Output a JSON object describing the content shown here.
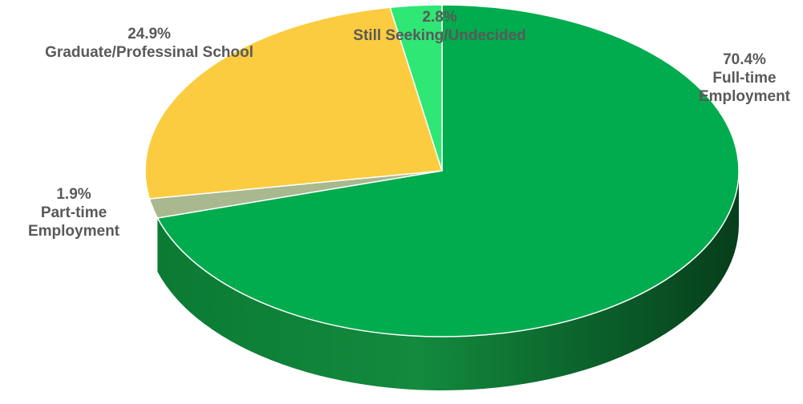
{
  "chart_data": {
    "type": "pie",
    "title": "",
    "slices": [
      {
        "name": "Full-time Employment",
        "value": 70.4,
        "percent_label": "70.4%",
        "label_lines": [
          "Full-time",
          "Employment"
        ],
        "color": "#00ac4d",
        "side_color": "#008a3d"
      },
      {
        "name": "Part-time Employment",
        "value": 1.9,
        "percent_label": "1.9%",
        "label_lines": [
          "Part-time",
          "Employment"
        ],
        "color": "#a8b88f",
        "side_color": "#8a9a72"
      },
      {
        "name": "Graduate/Professinal School",
        "value": 24.9,
        "percent_label": "24.9%",
        "label_lines": [
          "Graduate/Professinal School"
        ],
        "color": "#fbcc3f",
        "side_color": "#d6a92c"
      },
      {
        "name": "Still Seeking/Undecided",
        "value": 2.8,
        "percent_label": "2.8%",
        "label_lines": [
          "Still Seeking/Undecided"
        ],
        "color": "#2ee775",
        "side_color": "#1fbf5e"
      }
    ],
    "legend": "none",
    "style": "3d"
  }
}
